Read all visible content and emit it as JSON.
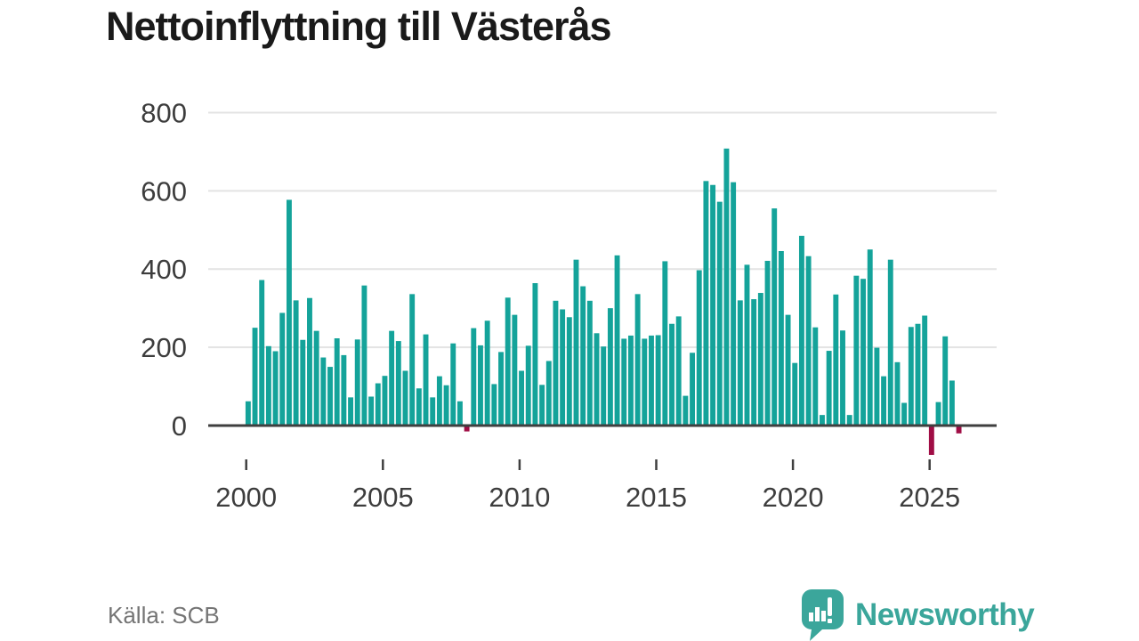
{
  "title": "Nettoinflyttning till Västerås",
  "source": {
    "label": "Källa: SCB"
  },
  "branding": {
    "name": "Newsworthy",
    "icon": "newsworthy-speech-bubble-bars-icon",
    "color": "#3ba69b"
  },
  "colors": {
    "positive_bar": "#14a39a",
    "negative_bar": "#a00d45",
    "axis": "#3f3f3f",
    "grid": "#e3e3e3",
    "tick_label": "#3d3d3d",
    "title_text": "#1a1a1a",
    "source_text": "#757575"
  },
  "chart_data": {
    "type": "bar",
    "title": "Nettoinflyttning till Västerås",
    "xlabel": "",
    "ylabel": "",
    "x_unit": "quarter",
    "start_period": "2000-Q1",
    "end_period": "2026-Q1",
    "x_tick_labels": [
      "2000",
      "2005",
      "2010",
      "2015",
      "2020",
      "2025"
    ],
    "y_ticks": [
      0,
      200,
      400,
      600,
      800
    ],
    "ylim": [
      -110,
      860
    ],
    "grid": "horizontal",
    "legend": "none",
    "values": [
      62,
      250,
      372,
      203,
      190,
      288,
      577,
      320,
      219,
      326,
      242,
      174,
      150,
      223,
      180,
      72,
      220,
      358,
      74,
      108,
      127,
      242,
      216,
      140,
      336,
      95,
      233,
      72,
      126,
      103,
      210,
      62,
      -15,
      249,
      205,
      268,
      106,
      188,
      327,
      283,
      140,
      204,
      364,
      104,
      165,
      319,
      297,
      277,
      424,
      356,
      319,
      236,
      202,
      300,
      435,
      222,
      230,
      336,
      222,
      230,
      231,
      420,
      260,
      279,
      76,
      186,
      397,
      625,
      615,
      572,
      708,
      622,
      320,
      411,
      323,
      339,
      421,
      555,
      446,
      283,
      160,
      485,
      433,
      251,
      27,
      191,
      335,
      243,
      27,
      383,
      375,
      450,
      199,
      126,
      424,
      162,
      58,
      252,
      260,
      281,
      -75,
      60,
      228,
      115,
      -20
    ]
  }
}
